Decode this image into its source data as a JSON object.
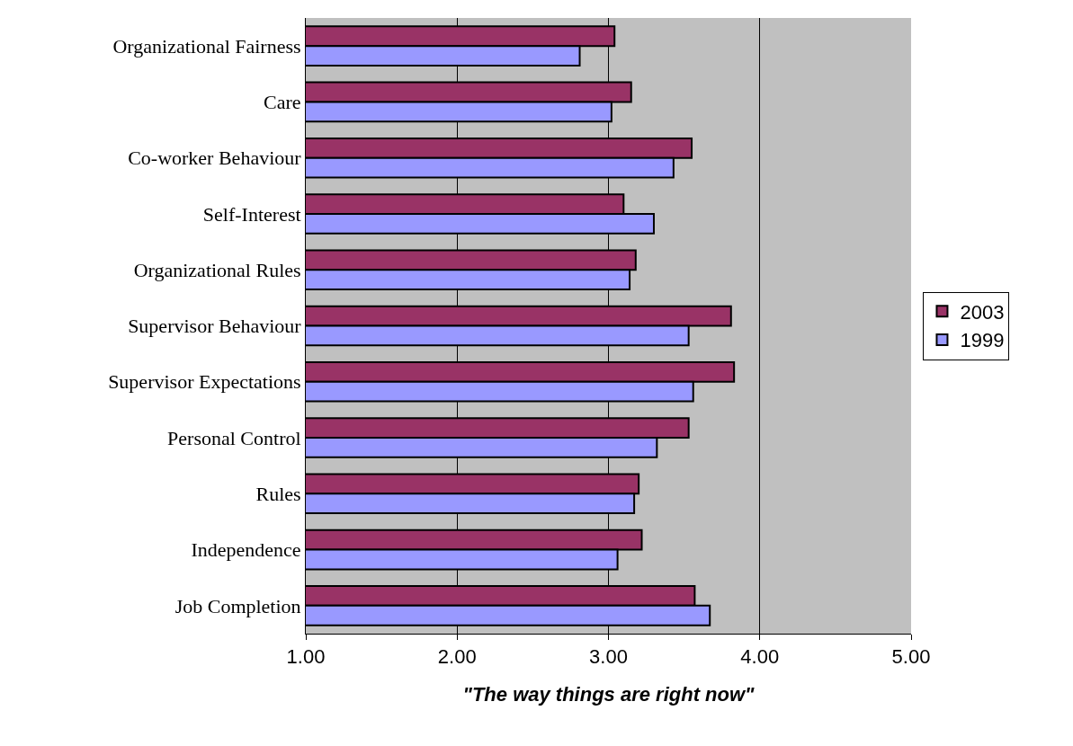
{
  "chart_data": {
    "type": "bar",
    "orientation": "horizontal",
    "xlabel": "\"The way things are right now\"",
    "categories": [
      "Organizational Fairness",
      "Care",
      "Co-worker Behaviour",
      "Self-Interest",
      "Organizational Rules",
      "Supervisor Behaviour",
      "Supervisor Expectations",
      "Personal Control",
      "Rules",
      "Independence",
      "Job Completion"
    ],
    "series": [
      {
        "name": "2003",
        "color": "#993366",
        "values": [
          3.04,
          3.15,
          3.55,
          3.1,
          3.18,
          3.81,
          3.83,
          3.53,
          3.2,
          3.22,
          3.57
        ]
      },
      {
        "name": "1999",
        "color": "#9999ff",
        "values": [
          2.81,
          3.02,
          3.43,
          3.3,
          3.14,
          3.53,
          3.56,
          3.32,
          3.17,
          3.06,
          3.67
        ]
      }
    ],
    "xlim": [
      1,
      5
    ],
    "xticks": [
      {
        "value": 1,
        "label": "1.00"
      },
      {
        "value": 2,
        "label": "2.00"
      },
      {
        "value": 3,
        "label": "3.00"
      },
      {
        "value": 4,
        "label": "4.00"
      },
      {
        "value": 5,
        "label": "5.00"
      }
    ],
    "grid": "x",
    "legend": "right"
  }
}
